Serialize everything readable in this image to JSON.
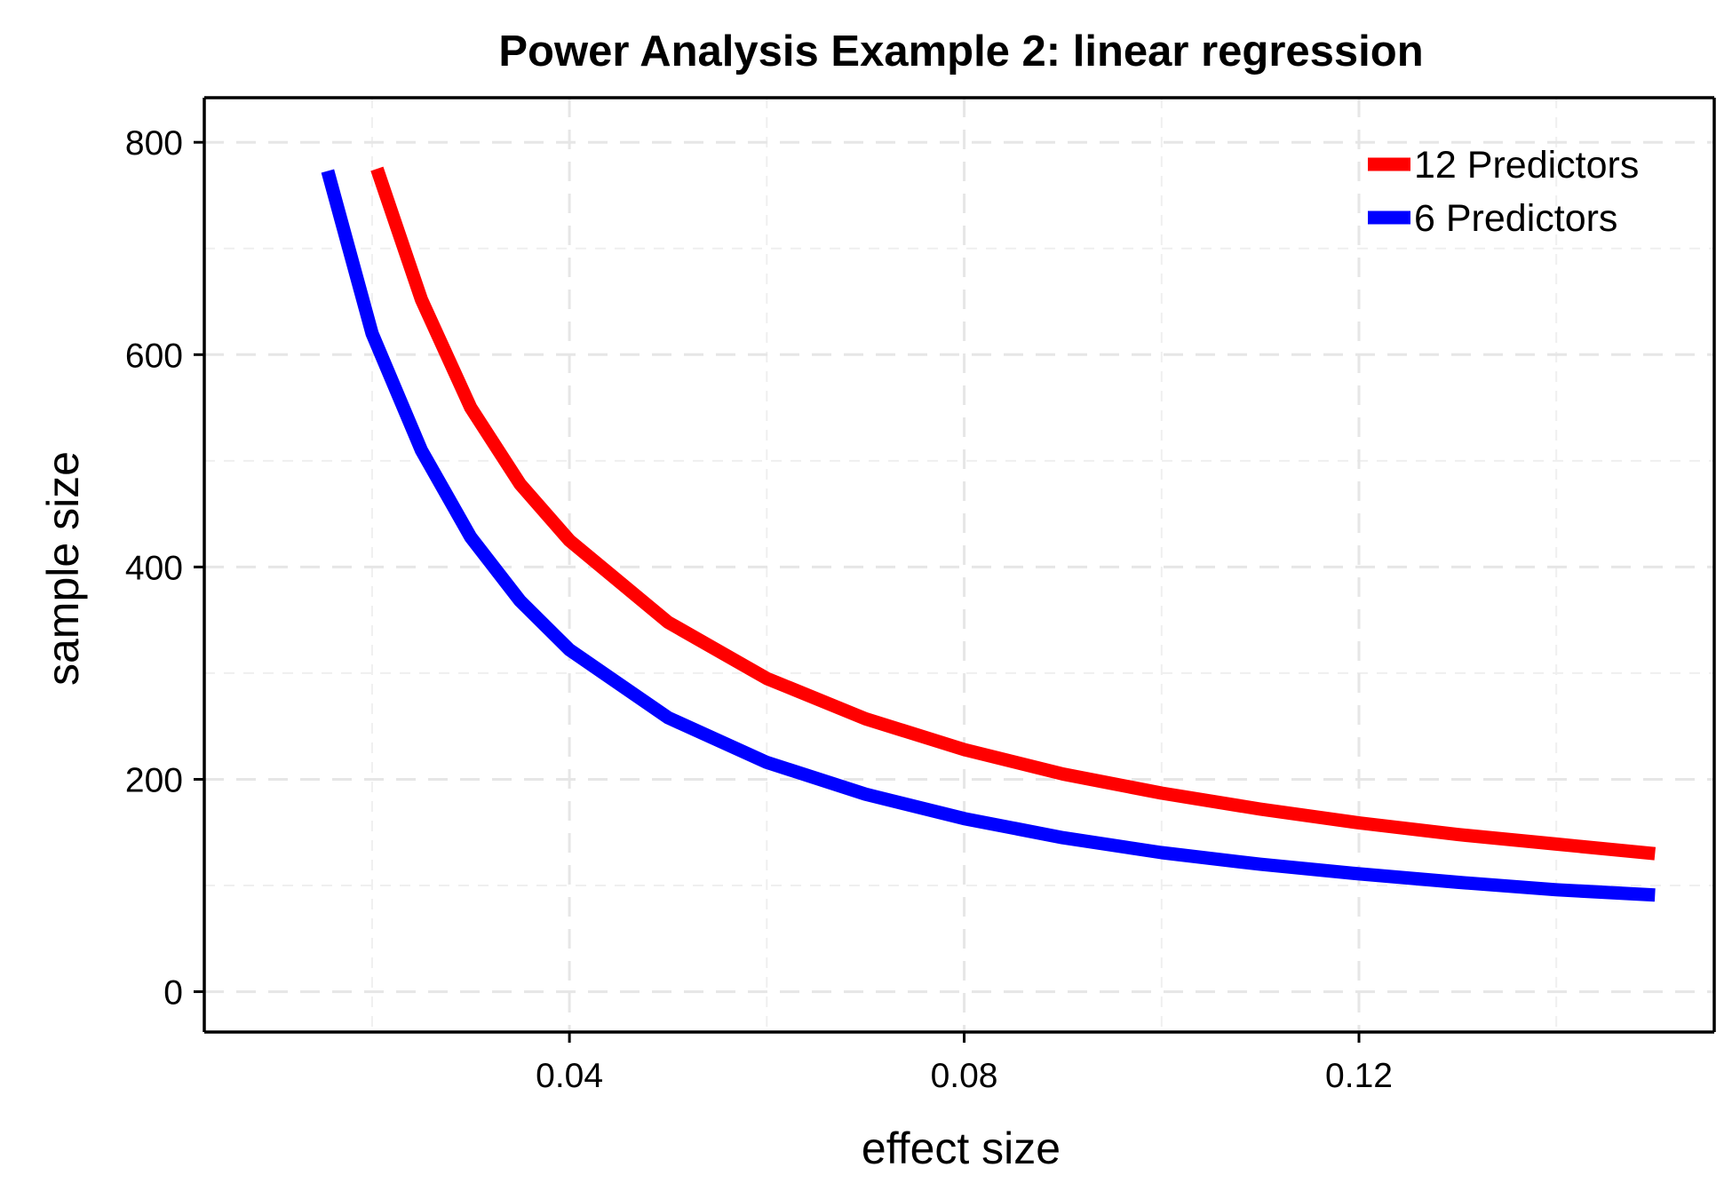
{
  "chart_data": {
    "type": "line",
    "title": "Power Analysis Example 2: linear regression",
    "xlabel": "effect size",
    "ylabel": "sample size",
    "xlim": [
      0.003,
      0.156
    ],
    "ylim": [
      -38,
      842
    ],
    "x_ticks": [
      0.04,
      0.08,
      0.12
    ],
    "x_tick_labels": [
      "0.04",
      "0.08",
      "0.12"
    ],
    "x_minor_ticks": [
      0.02,
      0.06,
      0.1,
      0.14
    ],
    "y_ticks": [
      0,
      200,
      400,
      600,
      800
    ],
    "y_tick_labels": [
      "0",
      "200",
      "400",
      "600",
      "800"
    ],
    "y_minor_ticks": [
      100,
      300,
      500,
      700
    ],
    "grid": true,
    "legend_position": "top-right",
    "series": [
      {
        "name": "12 Predictors",
        "color": "#ff0000",
        "x": [
          0.0205,
          0.025,
          0.03,
          0.035,
          0.04,
          0.05,
          0.06,
          0.07,
          0.08,
          0.09,
          0.1,
          0.11,
          0.12,
          0.13,
          0.14,
          0.15
        ],
        "y": [
          775,
          652,
          550,
          478,
          425,
          348,
          295,
          257,
          228,
          205,
          187,
          172,
          159,
          148,
          139,
          130
        ]
      },
      {
        "name": "6 Predictors",
        "color": "#0000ff",
        "x": [
          0.0155,
          0.02,
          0.025,
          0.03,
          0.035,
          0.04,
          0.05,
          0.06,
          0.07,
          0.08,
          0.09,
          0.1,
          0.11,
          0.12,
          0.13,
          0.14,
          0.15
        ],
        "y": [
          773,
          620,
          510,
          428,
          368,
          322,
          258,
          216,
          186,
          163,
          145,
          131,
          120,
          111,
          103,
          96,
          91
        ]
      }
    ]
  }
}
